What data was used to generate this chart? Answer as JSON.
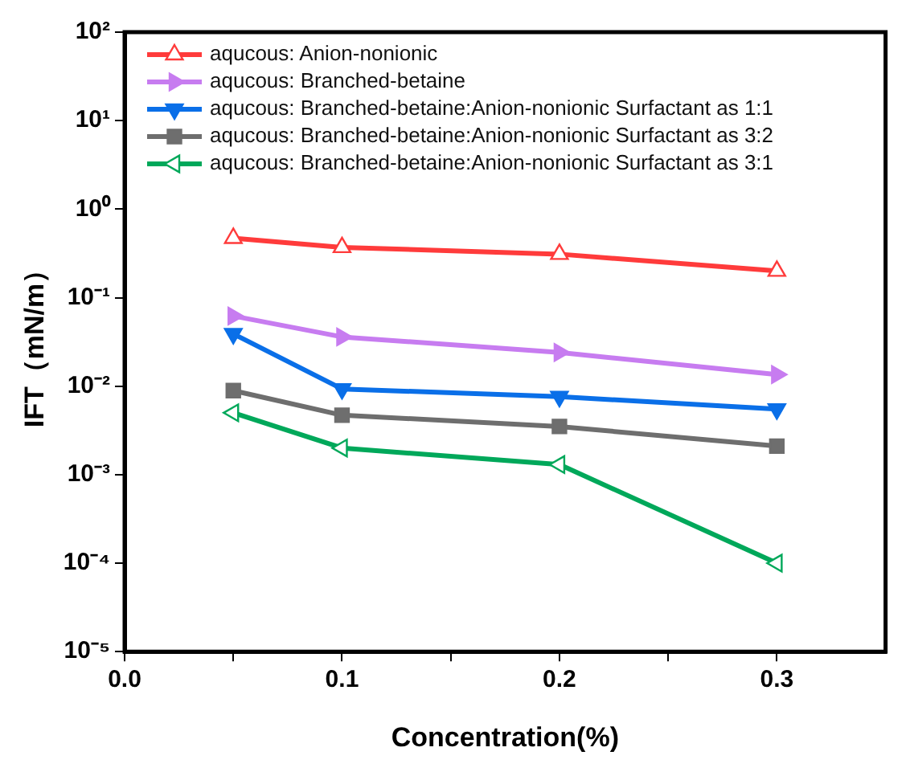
{
  "chart_data": {
    "type": "line",
    "xlabel": "Concentration(%)",
    "ylabel": "IFT（mN/m）",
    "x": [
      0.05,
      0.1,
      0.2,
      0.3
    ],
    "series": [
      {
        "name": "aqucous: Anion-nonionic",
        "color": "#ff3b3b",
        "marker": "triangle",
        "values": [
          0.47,
          0.37,
          0.31,
          0.2
        ]
      },
      {
        "name": "aqucous: Branched-betaine",
        "color": "#c77cf0",
        "marker": "triangle",
        "values": [
          0.062,
          0.036,
          0.024,
          0.0135
        ]
      },
      {
        "name": "aqucous: Branched-betaine:Anion-nonionic Surfactant as 1:1",
        "color": "#0a6fe8",
        "marker": "triangle",
        "values": [
          0.039,
          0.0093,
          0.0076,
          0.0055
        ]
      },
      {
        "name": "aqucous: Branched-betaine:Anion-nonionic Surfactant as 3:2",
        "color": "#6e6e6e",
        "marker": "square",
        "values": [
          0.0089,
          0.0047,
          0.0035,
          0.0021
        ]
      },
      {
        "name": "aqucous: Branched-betaine:Anion-nonionic Surfactant as 3:1",
        "color": "#00a85a",
        "marker": "triangle",
        "values": [
          0.005,
          0.002,
          0.0013,
          0.0001
        ]
      }
    ],
    "log": "y",
    "grid": false,
    "legend": "top left",
    "xlim": [
      0,
      0.35
    ],
    "xticks": [
      {
        "value": 0,
        "label": "0.0"
      },
      {
        "value": 0.05,
        "label": null
      },
      0.1,
      {
        "value": 0.15,
        "label": null
      },
      0.2,
      {
        "value": 0.25,
        "label": null
      },
      0.3
    ],
    "ylim": [
      1e-05,
      100
    ],
    "yticks": [
      {
        "value": 1e-05,
        "label": "10⁻⁵"
      },
      {
        "value": 0.0001,
        "label": "10⁻⁴"
      },
      {
        "value": 0.001,
        "label": "10⁻³"
      },
      {
        "value": 0.01,
        "label": "10⁻²"
      },
      {
        "value": 0.1,
        "label": "10⁻¹"
      },
      {
        "value": 1,
        "label": "10⁰"
      },
      {
        "value": 10,
        "label": "10¹"
      },
      {
        "value": 100,
        "label": "10²"
      }
    ]
  }
}
